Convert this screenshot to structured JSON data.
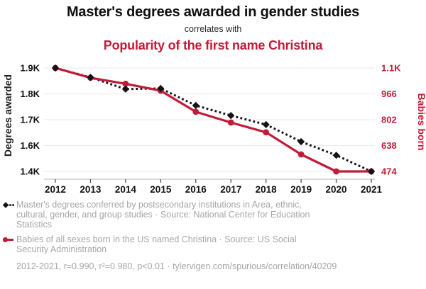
{
  "title": {
    "main": "Master's degrees awarded in gender studies",
    "connector": "correlates with",
    "secondary": "Popularity of the first name Christina"
  },
  "colors": {
    "accent_red": "#c11b38",
    "series_black": "#141414",
    "grid": "#eaeaea",
    "axis_line": "#b5b5b5",
    "tick_mark": "#555555",
    "legend_gray": "#a6a6a6"
  },
  "chart_data": {
    "type": "line",
    "x": [
      2012,
      2013,
      2014,
      2015,
      2016,
      2017,
      2018,
      2019,
      2020,
      2021
    ],
    "series": [
      {
        "name": "Master's degrees conferred by postsecondary institutions in Area, ethnic, cultural, gender, and group studies",
        "axis": "left",
        "marker": "diamond",
        "line_style": "dotted",
        "color": "#141414",
        "values": [
          1896,
          1855,
          1803,
          1806,
          1731,
          1687,
          1647,
          1572,
          1512,
          1441
        ]
      },
      {
        "name": "Babies of all sexes born in the US named Christina",
        "axis": "right",
        "marker": "circle",
        "line_style": "solid",
        "color": "#c11b38",
        "values": [
          1130,
          1068,
          1030,
          986,
          852,
          784,
          722,
          582,
          474,
          474
        ]
      }
    ],
    "left_axis": {
      "label": "Degrees awarded",
      "tick_labels": [
        "1.9K",
        "1.8K",
        "1.7K",
        "1.6K",
        "1.4K"
      ],
      "min": 1441,
      "max": 1896
    },
    "right_axis": {
      "label": "Babies born",
      "tick_labels": [
        "1.1K",
        "966",
        "802",
        "638",
        "474"
      ],
      "min": 474,
      "max": 1130
    },
    "grid": true,
    "legend_position": "bottom"
  },
  "legend": {
    "entries": [
      {
        "marker": "black-diamond-dotted",
        "label": "Master's degrees conferred by postsecondary institutions in Area, ethnic, cultural, gender, and group studies · Source: National Center for Education Statistics"
      },
      {
        "marker": "red-circle-solid",
        "label": "Babies of all sexes born in the US named Christina · Source: US Social Security Administration"
      }
    ],
    "footer": "2012-2021, r=0.990, r²=0.980, p<0.01 · tylervigen.com/spurious/correlation/40209"
  }
}
